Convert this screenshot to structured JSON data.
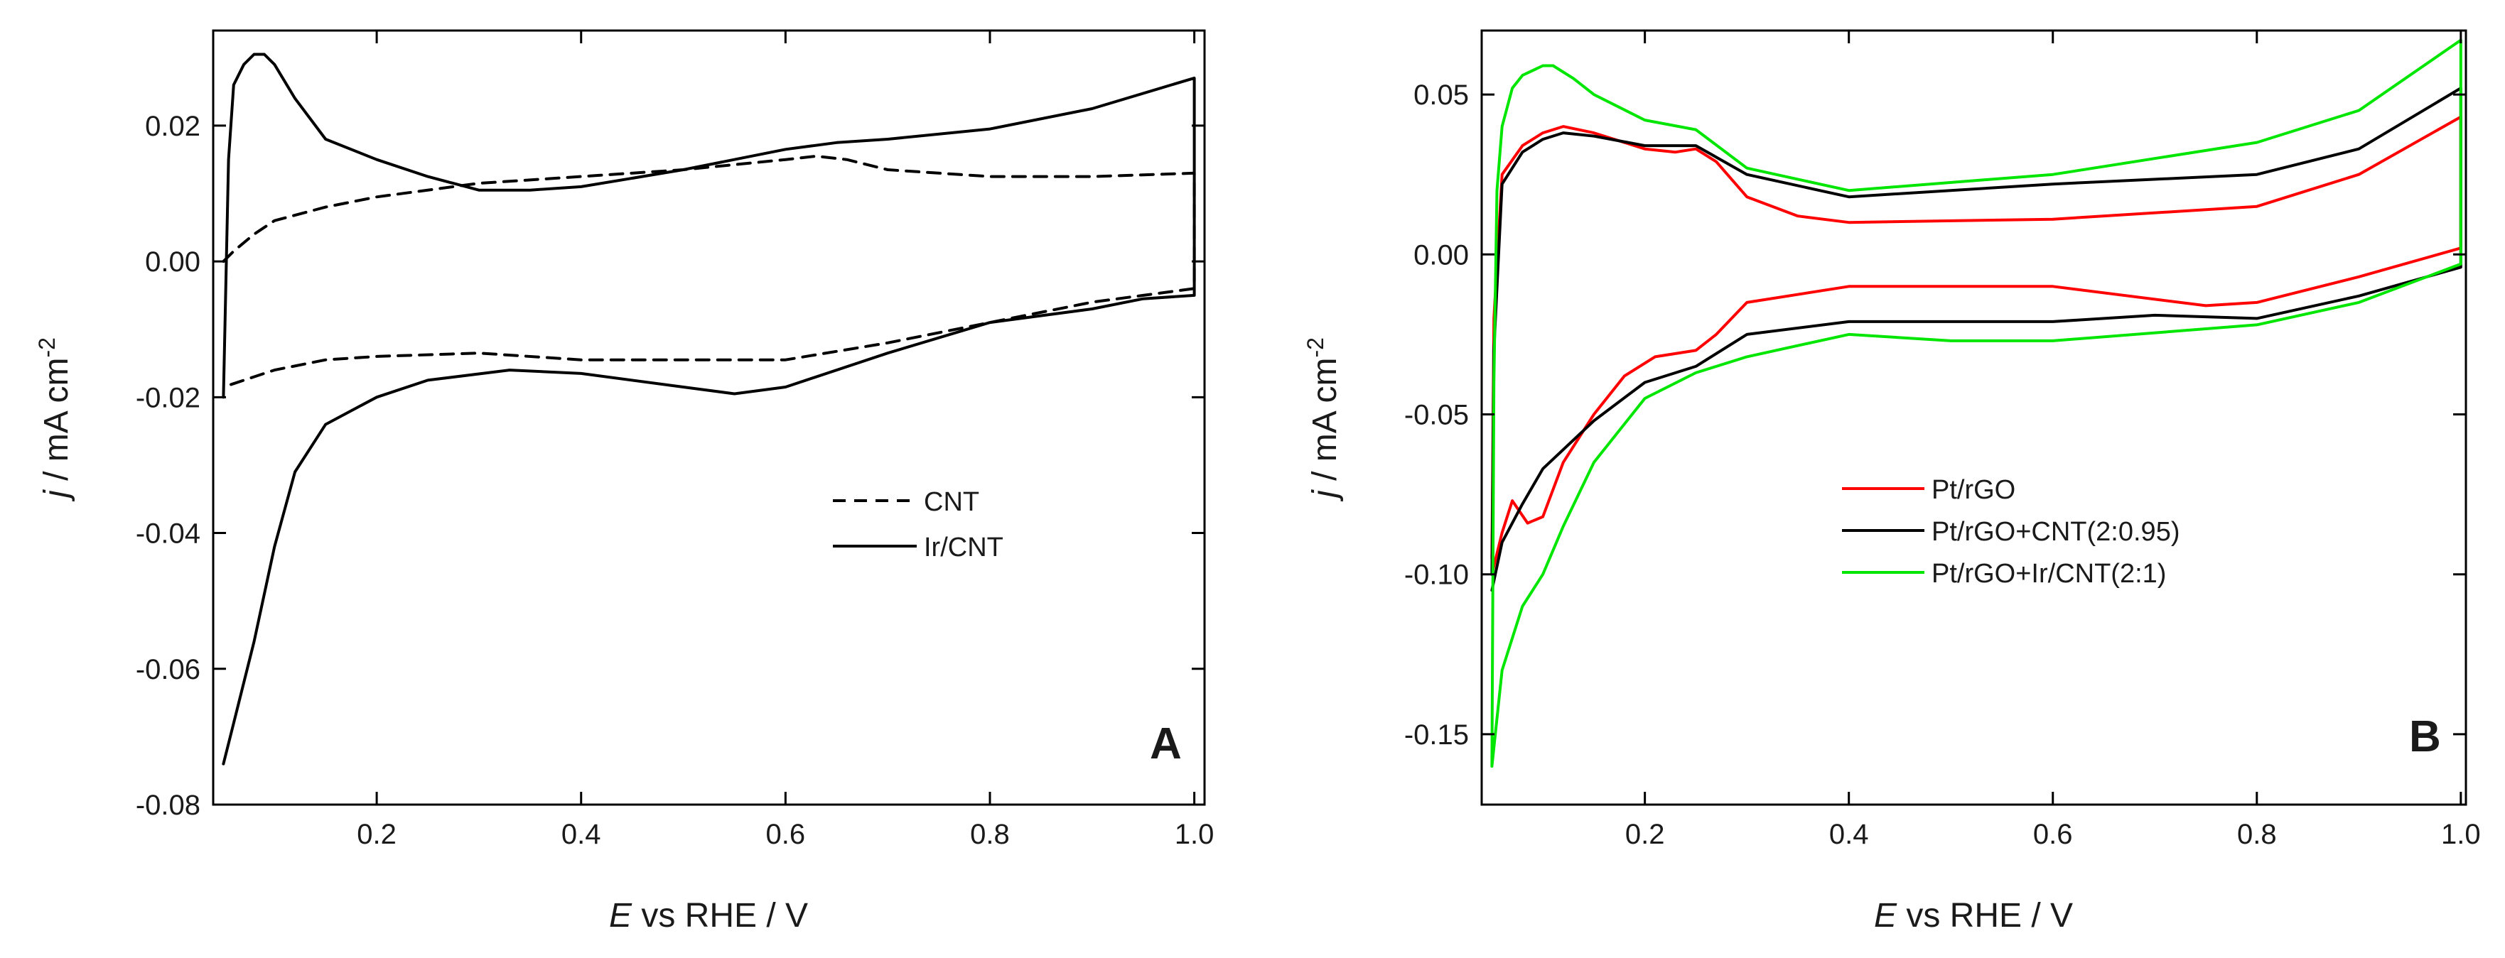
{
  "chart_data": [
    {
      "type": "line",
      "panel_label": "A",
      "xlabel_italic": "E",
      "xlabel": " vs RHE / V",
      "ylabel_italic": "j",
      "ylabel_unit": " / mA cm",
      "ylabel_exp": "-2",
      "xlim": [
        0.04,
        1.01
      ],
      "ylim": [
        -0.08,
        0.034
      ],
      "xticks": [
        0.2,
        0.4,
        0.6,
        0.8,
        1.0
      ],
      "xtick_labels": [
        "0.2",
        "0.4",
        "0.6",
        "0.8",
        "1.0"
      ],
      "yticks": [
        -0.08,
        -0.06,
        -0.04,
        -0.02,
        0.0,
        0.02
      ],
      "ytick_labels": [
        "-0.08",
        "-0.06",
        "-0.04",
        "-0.02",
        "0.00",
        "0.02"
      ],
      "legend_position": "center-right",
      "series": [
        {
          "name": "CNT",
          "color": "#000000",
          "dash": "dashed",
          "x": [
            0.05,
            0.06,
            0.08,
            0.1,
            0.15,
            0.2,
            0.3,
            0.4,
            0.5,
            0.6,
            0.63,
            0.66,
            0.7,
            0.8,
            0.9,
            1.0,
            1.0,
            0.95,
            0.9,
            0.8,
            0.7,
            0.6,
            0.5,
            0.4,
            0.3,
            0.2,
            0.15,
            0.1,
            0.08,
            0.06,
            0.05
          ],
          "y": [
            0.0,
            0.0015,
            0.004,
            0.006,
            0.008,
            0.0095,
            0.0115,
            0.0125,
            0.0135,
            0.015,
            0.0155,
            0.015,
            0.0135,
            0.0125,
            0.0125,
            0.013,
            -0.004,
            -0.005,
            -0.006,
            -0.009,
            -0.012,
            -0.0145,
            -0.0145,
            -0.0145,
            -0.0135,
            -0.014,
            -0.0145,
            -0.016,
            -0.017,
            -0.018,
            -0.0185
          ]
        },
        {
          "name": "Ir/CNT",
          "color": "#000000",
          "dash": "solid",
          "x": [
            0.05,
            0.055,
            0.06,
            0.07,
            0.08,
            0.09,
            0.1,
            0.12,
            0.15,
            0.2,
            0.25,
            0.3,
            0.35,
            0.4,
            0.5,
            0.6,
            0.65,
            0.7,
            0.8,
            0.9,
            1.0,
            1.0,
            0.95,
            0.9,
            0.8,
            0.7,
            0.6,
            0.55,
            0.5,
            0.4,
            0.33,
            0.25,
            0.2,
            0.15,
            0.12,
            0.1,
            0.08,
            0.06,
            0.05
          ],
          "y": [
            -0.02,
            0.015,
            0.026,
            0.029,
            0.0305,
            0.0305,
            0.029,
            0.024,
            0.018,
            0.015,
            0.0125,
            0.0105,
            0.0105,
            0.011,
            0.0135,
            0.0165,
            0.0175,
            0.018,
            0.0195,
            0.0225,
            0.027,
            -0.005,
            -0.0055,
            -0.007,
            -0.009,
            -0.0135,
            -0.0185,
            -0.0195,
            -0.0185,
            -0.0165,
            -0.016,
            -0.0175,
            -0.02,
            -0.024,
            -0.031,
            -0.042,
            -0.056,
            -0.068,
            -0.074
          ]
        }
      ]
    },
    {
      "type": "line",
      "panel_label": "B",
      "xlabel_italic": "E",
      "xlabel": " vs RHE / V",
      "ylabel_italic": "j",
      "ylabel_unit": " / mA cm",
      "ylabel_exp": "-2",
      "xlim": [
        0.04,
        1.005
      ],
      "ylim": [
        -0.172,
        0.07
      ],
      "xticks": [
        0.2,
        0.4,
        0.6,
        0.8,
        1.0
      ],
      "xtick_labels": [
        "0.2",
        "0.4",
        "0.6",
        "0.8",
        "1.0"
      ],
      "yticks": [
        -0.15,
        -0.1,
        -0.05,
        0.0,
        0.05
      ],
      "ytick_labels": [
        "-0.15",
        "-0.10",
        "-0.05",
        "0.00",
        "0.05"
      ],
      "legend_position": "center",
      "series": [
        {
          "name": "Pt/rGO",
          "color": "#ff0000",
          "dash": "solid",
          "x": [
            0.05,
            0.052,
            0.06,
            0.08,
            0.1,
            0.12,
            0.15,
            0.2,
            0.23,
            0.25,
            0.27,
            0.3,
            0.35,
            0.4,
            0.6,
            0.8,
            0.9,
            1.0,
            1.0,
            0.9,
            0.8,
            0.75,
            0.6,
            0.4,
            0.3,
            0.27,
            0.25,
            0.21,
            0.18,
            0.15,
            0.12,
            0.1,
            0.085,
            0.07,
            0.06,
            0.05
          ],
          "y": [
            -0.095,
            -0.02,
            0.025,
            0.034,
            0.038,
            0.04,
            0.038,
            0.033,
            0.032,
            0.033,
            0.029,
            0.018,
            0.012,
            0.01,
            0.011,
            0.015,
            0.025,
            0.043,
            0.002,
            -0.007,
            -0.015,
            -0.016,
            -0.01,
            -0.01,
            -0.015,
            -0.025,
            -0.03,
            -0.032,
            -0.038,
            -0.05,
            -0.065,
            -0.082,
            -0.084,
            -0.077,
            -0.087,
            -0.1
          ]
        },
        {
          "name": "Pt/rGO+CNT(2:0.95)",
          "color": "#000000",
          "dash": "solid",
          "x": [
            0.05,
            0.052,
            0.06,
            0.08,
            0.1,
            0.12,
            0.15,
            0.2,
            0.25,
            0.3,
            0.4,
            0.6,
            0.8,
            0.9,
            1.0,
            1.0,
            0.9,
            0.8,
            0.7,
            0.6,
            0.4,
            0.3,
            0.25,
            0.2,
            0.15,
            0.1,
            0.08,
            0.06,
            0.05
          ],
          "y": [
            -0.1,
            -0.03,
            0.022,
            0.032,
            0.036,
            0.038,
            0.037,
            0.034,
            0.034,
            0.025,
            0.018,
            0.022,
            0.025,
            0.033,
            0.052,
            -0.004,
            -0.013,
            -0.02,
            -0.019,
            -0.021,
            -0.021,
            -0.025,
            -0.035,
            -0.04,
            -0.052,
            -0.067,
            -0.078,
            -0.09,
            -0.105
          ]
        },
        {
          "name": "Pt/rGO+Ir/CNT(2:1)",
          "color": "#00e600",
          "dash": "solid",
          "x": [
            0.05,
            0.052,
            0.055,
            0.06,
            0.07,
            0.08,
            0.1,
            0.11,
            0.13,
            0.15,
            0.2,
            0.25,
            0.3,
            0.4,
            0.6,
            0.8,
            0.9,
            1.0,
            1.0,
            0.9,
            0.8,
            0.6,
            0.5,
            0.4,
            0.3,
            0.25,
            0.2,
            0.15,
            0.12,
            0.1,
            0.08,
            0.06,
            0.05
          ],
          "y": [
            -0.16,
            -0.04,
            0.02,
            0.04,
            0.052,
            0.056,
            0.059,
            0.059,
            0.055,
            0.05,
            0.042,
            0.039,
            0.027,
            0.02,
            0.025,
            0.035,
            0.045,
            0.067,
            -0.003,
            -0.015,
            -0.022,
            -0.027,
            -0.027,
            -0.025,
            -0.032,
            -0.037,
            -0.045,
            -0.065,
            -0.085,
            -0.1,
            -0.11,
            -0.13,
            -0.16
          ]
        }
      ]
    }
  ]
}
